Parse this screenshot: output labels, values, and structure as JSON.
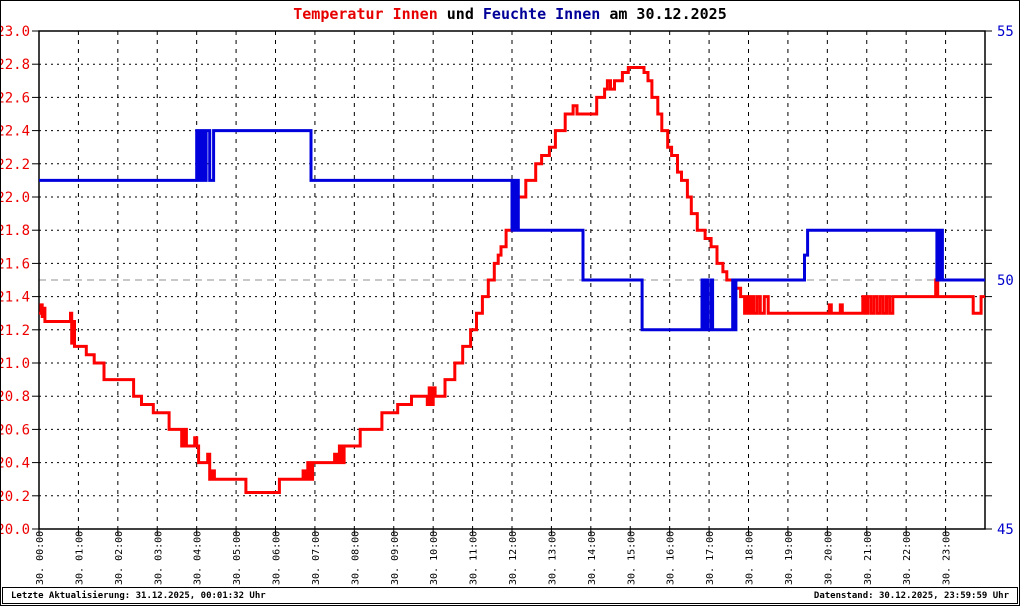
{
  "header": {
    "title_temp": "Temperatur Innen",
    "title_and": " und ",
    "title_hum": "Feuchte Innen",
    "title_date": " am 30.12.2025"
  },
  "footer": {
    "last_update": "Letzte Aktualisierung: 31.12.2025, 00:01:32 Uhr",
    "data_state": "Datenstand: 30.12.2025, 23:59:59 Uhr"
  },
  "colors": {
    "temperature_red": "#ff0000",
    "humidity_blue": "#0000dd",
    "left_axis_label_red": "#ee0000",
    "right_axis_label_blue": "#0000cc",
    "grid_black": "#000000",
    "humidity_50_gridline_gray": "#c8c8c8"
  },
  "chart_data": {
    "type": "line",
    "title": "Temperatur Innen und Feuchte Innen am 30.12.2025",
    "grid": true,
    "legend_position": "none",
    "x_axis": {
      "unit": "hour of 30.12.2025",
      "range": [
        0,
        24
      ],
      "tick_hours": [
        0,
        1,
        2,
        3,
        4,
        5,
        6,
        7,
        8,
        9,
        10,
        11,
        12,
        13,
        14,
        15,
        16,
        17,
        18,
        19,
        20,
        21,
        22,
        23
      ],
      "tick_labels": [
        "30. 00:00",
        "30. 01:00",
        "30. 02:00",
        "30. 03:00",
        "30. 04:00",
        "30. 05:00",
        "30. 06:00",
        "30. 07:00",
        "30. 08:00",
        "30. 09:00",
        "30. 10:00",
        "30. 11:00",
        "30. 12:00",
        "30. 13:00",
        "30. 14:00",
        "30. 15:00",
        "30. 16:00",
        "30. 17:00",
        "30. 18:00",
        "30. 19:00",
        "30. 20:00",
        "30. 21:00",
        "30. 22:00",
        "30. 23:00"
      ]
    },
    "y_left": {
      "name": "Temperatur Innen",
      "min": 20.0,
      "max": 23.0,
      "tick_step": 0.2,
      "tick_labels": [
        "23.0",
        "22.8",
        "22.6",
        "22.4",
        "22.2",
        "22.0",
        "21.8",
        "21.6",
        "21.4",
        "21.2",
        "21.0",
        "20.8",
        "20.6",
        "20.4",
        "20.2",
        "20.0"
      ]
    },
    "y_right": {
      "name": "Feuchte Innen",
      "min": 45,
      "max": 55,
      "ticks": [
        {
          "value": 55,
          "label": "55"
        },
        {
          "value": 50,
          "label": "50"
        },
        {
          "value": 45,
          "label": "45"
        }
      ],
      "gray_gridline_value": 50
    },
    "series": [
      {
        "name": "Temperatur Innen",
        "axis": "left",
        "color": "#ff0000",
        "steps": [
          [
            0.0,
            21.3
          ],
          [
            0.05,
            21.35
          ],
          [
            0.08,
            21.28
          ],
          [
            0.12,
            21.33
          ],
          [
            0.15,
            21.25
          ],
          [
            0.8,
            21.3
          ],
          [
            0.83,
            21.12
          ],
          [
            0.87,
            21.25
          ],
          [
            0.9,
            21.1
          ],
          [
            1.2,
            21.05
          ],
          [
            1.4,
            21.0
          ],
          [
            1.65,
            20.9
          ],
          [
            2.4,
            20.8
          ],
          [
            2.6,
            20.75
          ],
          [
            2.9,
            20.7
          ],
          [
            3.3,
            20.6
          ],
          [
            3.62,
            20.5
          ],
          [
            3.68,
            20.6
          ],
          [
            3.74,
            20.5
          ],
          [
            3.95,
            20.55
          ],
          [
            4.0,
            20.5
          ],
          [
            4.05,
            20.4
          ],
          [
            4.28,
            20.45
          ],
          [
            4.33,
            20.3
          ],
          [
            4.4,
            20.35
          ],
          [
            4.45,
            20.3
          ],
          [
            5.25,
            20.22
          ],
          [
            6.1,
            20.3
          ],
          [
            6.7,
            20.35
          ],
          [
            6.76,
            20.3
          ],
          [
            6.82,
            20.4
          ],
          [
            6.88,
            20.3
          ],
          [
            6.94,
            20.4
          ],
          [
            7.5,
            20.45
          ],
          [
            7.56,
            20.4
          ],
          [
            7.62,
            20.5
          ],
          [
            7.68,
            20.4
          ],
          [
            7.74,
            20.5
          ],
          [
            8.15,
            20.6
          ],
          [
            8.7,
            20.7
          ],
          [
            9.1,
            20.75
          ],
          [
            9.45,
            20.8
          ],
          [
            9.85,
            20.75
          ],
          [
            9.9,
            20.85
          ],
          [
            9.95,
            20.75
          ],
          [
            10.0,
            20.85
          ],
          [
            10.05,
            20.8
          ],
          [
            10.3,
            20.9
          ],
          [
            10.55,
            21.0
          ],
          [
            10.75,
            21.1
          ],
          [
            10.95,
            21.2
          ],
          [
            11.1,
            21.3
          ],
          [
            11.25,
            21.4
          ],
          [
            11.4,
            21.5
          ],
          [
            11.55,
            21.6
          ],
          [
            11.65,
            21.65
          ],
          [
            11.72,
            21.7
          ],
          [
            11.85,
            21.8
          ],
          [
            12.0,
            21.9
          ],
          [
            12.15,
            22.0
          ],
          [
            12.35,
            22.1
          ],
          [
            12.6,
            22.2
          ],
          [
            12.75,
            22.25
          ],
          [
            12.95,
            22.3
          ],
          [
            13.1,
            22.4
          ],
          [
            13.35,
            22.5
          ],
          [
            13.55,
            22.55
          ],
          [
            13.65,
            22.5
          ],
          [
            14.15,
            22.6
          ],
          [
            14.35,
            22.65
          ],
          [
            14.42,
            22.7
          ],
          [
            14.5,
            22.65
          ],
          [
            14.6,
            22.7
          ],
          [
            14.8,
            22.75
          ],
          [
            14.95,
            22.78
          ],
          [
            15.35,
            22.75
          ],
          [
            15.45,
            22.7
          ],
          [
            15.55,
            22.6
          ],
          [
            15.7,
            22.5
          ],
          [
            15.8,
            22.4
          ],
          [
            15.95,
            22.3
          ],
          [
            16.05,
            22.25
          ],
          [
            16.2,
            22.15
          ],
          [
            16.3,
            22.1
          ],
          [
            16.45,
            22.0
          ],
          [
            16.55,
            21.9
          ],
          [
            16.7,
            21.8
          ],
          [
            16.9,
            21.75
          ],
          [
            17.05,
            21.7
          ],
          [
            17.2,
            21.6
          ],
          [
            17.35,
            21.55
          ],
          [
            17.45,
            21.5
          ],
          [
            17.65,
            21.45
          ],
          [
            17.8,
            21.4
          ],
          [
            17.9,
            21.3
          ],
          [
            17.95,
            21.4
          ],
          [
            18.0,
            21.3
          ],
          [
            18.07,
            21.4
          ],
          [
            18.14,
            21.3
          ],
          [
            18.22,
            21.4
          ],
          [
            18.3,
            21.3
          ],
          [
            18.4,
            21.4
          ],
          [
            18.5,
            21.3
          ],
          [
            20.05,
            21.35
          ],
          [
            20.1,
            21.3
          ],
          [
            20.33,
            21.35
          ],
          [
            20.38,
            21.3
          ],
          [
            20.9,
            21.4
          ],
          [
            20.96,
            21.3
          ],
          [
            21.02,
            21.4
          ],
          [
            21.1,
            21.3
          ],
          [
            21.18,
            21.4
          ],
          [
            21.26,
            21.3
          ],
          [
            21.34,
            21.4
          ],
          [
            21.42,
            21.3
          ],
          [
            21.5,
            21.4
          ],
          [
            21.58,
            21.3
          ],
          [
            21.66,
            21.4
          ],
          [
            22.75,
            21.5
          ],
          [
            22.8,
            21.4
          ],
          [
            23.7,
            21.3
          ],
          [
            23.9,
            21.4
          ]
        ]
      },
      {
        "name": "Feuchte Innen",
        "axis": "right",
        "color": "#0000dd",
        "steps": [
          [
            0.0,
            52
          ],
          [
            4.0,
            53
          ],
          [
            4.04,
            52
          ],
          [
            4.08,
            53
          ],
          [
            4.12,
            52
          ],
          [
            4.16,
            53
          ],
          [
            4.2,
            52
          ],
          [
            4.24,
            53
          ],
          [
            4.33,
            52
          ],
          [
            4.43,
            53
          ],
          [
            6.9,
            52
          ],
          [
            12.0,
            51
          ],
          [
            12.04,
            52
          ],
          [
            12.08,
            51
          ],
          [
            12.12,
            52
          ],
          [
            12.16,
            51
          ],
          [
            13.8,
            50
          ],
          [
            15.3,
            49
          ],
          [
            16.82,
            50
          ],
          [
            16.87,
            49
          ],
          [
            16.93,
            50
          ],
          [
            16.97,
            49
          ],
          [
            17.05,
            50
          ],
          [
            17.09,
            49
          ],
          [
            17.6,
            50
          ],
          [
            17.64,
            49
          ],
          [
            17.68,
            50
          ],
          [
            19.42,
            50.5
          ],
          [
            19.5,
            51
          ],
          [
            22.78,
            50
          ],
          [
            22.82,
            51
          ],
          [
            22.85,
            50
          ],
          [
            22.88,
            51
          ],
          [
            22.92,
            50
          ]
        ]
      }
    ]
  }
}
